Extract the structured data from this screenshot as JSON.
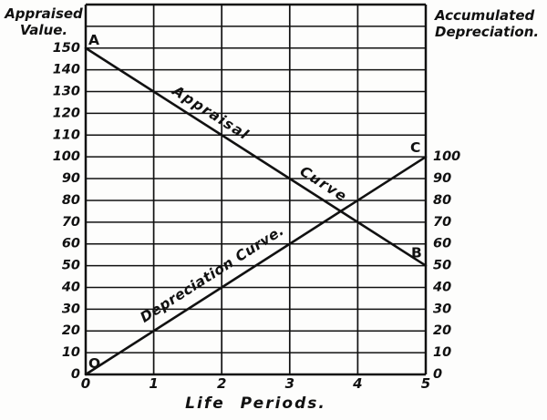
{
  "page": {
    "background": "#fdfdfc",
    "ink": "#111111"
  },
  "titles": {
    "left": [
      "Appraised",
      "Value."
    ],
    "right": [
      "Accumulated",
      "Depreciation."
    ]
  },
  "chart_data": {
    "type": "line",
    "xlabel": "Life Periods.",
    "left_axis_label": "Appraised Value.",
    "right_axis_label": "Accumulated Depreciation.",
    "xlim": [
      0,
      5
    ],
    "ylim": [
      0,
      170
    ],
    "grid": true,
    "grid_step_y": 10,
    "x_ticks": [
      0,
      1,
      2,
      3,
      4,
      5
    ],
    "left_ticks": [
      0,
      10,
      20,
      30,
      40,
      50,
      60,
      70,
      80,
      90,
      100,
      110,
      120,
      130,
      140,
      150
    ],
    "right_ticks": [
      0,
      10,
      20,
      30,
      40,
      50,
      60,
      70,
      80,
      90,
      100
    ],
    "series": [
      {
        "name": "Appraisal Curve",
        "x": [
          0,
          5
        ],
        "y": [
          150,
          50
        ],
        "point_labels": [
          {
            "text": "A",
            "x": 0,
            "y": 150,
            "dx": 3,
            "dy": -4
          },
          {
            "text": "B",
            "x": 5,
            "y": 50,
            "dx": -16,
            "dy": -9
          }
        ]
      },
      {
        "name": "Depreciation Curve",
        "x": [
          0,
          5
        ],
        "y": [
          0,
          100
        ],
        "point_labels": [
          {
            "text": "O",
            "x": 0,
            "y": 0,
            "dx": 3,
            "dy": -7
          },
          {
            "text": "C",
            "x": 5,
            "y": 100,
            "dx": -17,
            "dy": -5
          }
        ]
      }
    ],
    "line_labels": [
      {
        "text": "Appraisal",
        "series": 0,
        "at_x": 1.74,
        "offset": 9,
        "spacing": 1.5
      },
      {
        "text": "Curve",
        "series": 0,
        "at_x": 3.39,
        "offset": 10,
        "spacing": 1.5
      },
      {
        "text": "Depreciation Curve.",
        "series": 1,
        "at_x": 1.99,
        "offset": 13,
        "spacing": 0.5
      }
    ]
  }
}
